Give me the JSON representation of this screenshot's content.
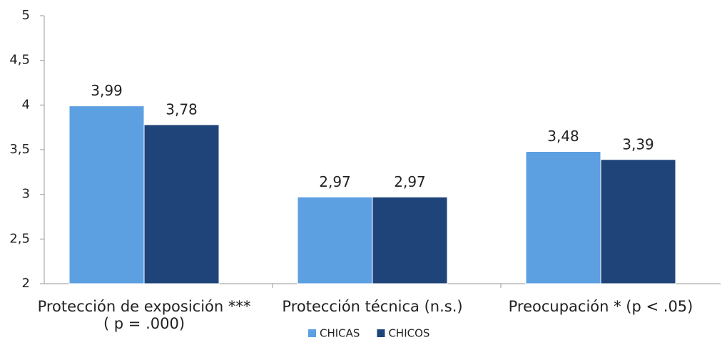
{
  "chart_data": {
    "type": "bar",
    "categories": [
      "Protección de exposición *** ( p = .000)",
      "Protección técnica (n.s.)",
      "Preocupación * (p < .05)"
    ],
    "series": [
      {
        "name": "CHICAS",
        "color": "#5ca0e1",
        "values": [
          3.99,
          2.97,
          3.48
        ],
        "value_labels": [
          "3,99",
          "2,97",
          "3,48"
        ]
      },
      {
        "name": "CHICOS",
        "color": "#1f4479",
        "values": [
          3.78,
          2.97,
          3.39
        ],
        "value_labels": [
          "3,78",
          "2,97",
          "3,39"
        ]
      }
    ],
    "ylim": [
      2,
      5
    ],
    "yticks": [
      2,
      {
        "value": 2.5,
        "label": "2,5"
      },
      3,
      {
        "value": 3.5,
        "label": "3,5"
      },
      4,
      {
        "value": 4.5,
        "label": "4,5"
      },
      5
    ],
    "legend": "bottom"
  }
}
